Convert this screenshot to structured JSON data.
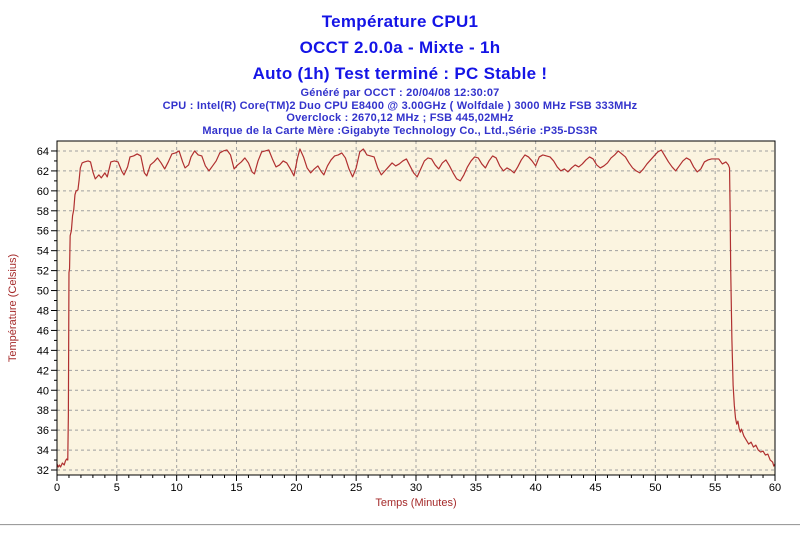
{
  "header": {
    "title_lines": [
      "Température CPU1",
      "OCCT 2.0.0a - Mixte - 1h",
      "Auto (1h) Test terminé : PC Stable !"
    ],
    "info_lines": [
      "Généré par OCCT : 20/04/08 12:30:07",
      "CPU : Intel(R) Core(TM)2 Duo CPU E8400 @ 3.00GHz ( Wolfdale ) 3000 MHz FSB 333MHz",
      "Overclock : 2670,12 MHz ; FSB 445,02MHz",
      "Marque de la Carte Mère :Gigabyte Technology Co., Ltd.,Série :P35-DS3R"
    ],
    "title_color": "#1414E6",
    "info_color": "#3333CC"
  },
  "chart_data": {
    "type": "line",
    "title": "Température CPU1",
    "xlabel": "Temps (Minutes)",
    "ylabel": "Température (Celsius)",
    "xlim": [
      0,
      60
    ],
    "ylim_display": [
      31.5,
      65.0
    ],
    "xticks": [
      0,
      5,
      10,
      15,
      20,
      25,
      30,
      35,
      40,
      45,
      50,
      55,
      60
    ],
    "yticks": [
      32,
      34,
      36,
      38,
      40,
      42,
      44,
      46,
      48,
      50,
      52,
      54,
      56,
      58,
      60,
      62,
      64
    ],
    "x_minor_step": 1,
    "y_minor_step": 1,
    "grid": "dashed",
    "grid_color": "#A0A0A0",
    "plot_bg": "#FBF4E0",
    "axis_color": "#000000",
    "tick_label_color": "#000000",
    "axis_title_color": "#A52A2A",
    "legend": "none",
    "series": [
      {
        "name": "CPU1",
        "color": "#B03030",
        "points": [
          [
            0,
            32.6
          ],
          [
            0.1,
            32.3
          ],
          [
            0.2,
            32.5
          ],
          [
            0.3,
            32.3
          ],
          [
            0.45,
            32.7
          ],
          [
            0.6,
            32.5
          ],
          [
            0.7,
            32.9
          ],
          [
            0.8,
            33.1
          ],
          [
            0.9,
            33.0
          ],
          [
            0.95,
            37.5
          ],
          [
            1.0,
            51.8
          ],
          [
            1.05,
            52.2
          ],
          [
            1.1,
            55.5
          ],
          [
            1.2,
            56.0
          ],
          [
            1.3,
            57.5
          ],
          [
            1.4,
            58.1
          ],
          [
            1.5,
            59.6
          ],
          [
            1.6,
            60.0
          ],
          [
            1.75,
            60.1
          ],
          [
            1.85,
            61.1
          ],
          [
            1.95,
            62.3
          ],
          [
            2.1,
            62.8
          ],
          [
            2.3,
            62.9
          ],
          [
            2.6,
            63.0
          ],
          [
            2.8,
            62.9
          ],
          [
            3.0,
            61.9
          ],
          [
            3.2,
            61.2
          ],
          [
            3.5,
            61.6
          ],
          [
            3.7,
            61.3
          ],
          [
            4.0,
            61.8
          ],
          [
            4.2,
            61.4
          ],
          [
            4.5,
            62.9
          ],
          [
            4.8,
            63.0
          ],
          [
            5.1,
            62.9
          ],
          [
            5.4,
            62.0
          ],
          [
            5.6,
            61.6
          ],
          [
            5.9,
            62.4
          ],
          [
            6.1,
            63.4
          ],
          [
            6.4,
            63.5
          ],
          [
            6.7,
            63.7
          ],
          [
            7.0,
            63.5
          ],
          [
            7.3,
            61.8
          ],
          [
            7.5,
            61.5
          ],
          [
            7.8,
            62.6
          ],
          [
            8.1,
            62.9
          ],
          [
            8.4,
            63.3
          ],
          [
            8.7,
            62.8
          ],
          [
            9.0,
            62.2
          ],
          [
            9.3,
            62.9
          ],
          [
            9.6,
            63.7
          ],
          [
            9.9,
            63.8
          ],
          [
            10.2,
            64.0
          ],
          [
            10.5,
            62.9
          ],
          [
            10.7,
            62.3
          ],
          [
            11.0,
            62.6
          ],
          [
            11.2,
            63.4
          ],
          [
            11.5,
            64.0
          ],
          [
            11.8,
            63.6
          ],
          [
            12.1,
            63.5
          ],
          [
            12.4,
            62.5
          ],
          [
            12.7,
            62.0
          ],
          [
            13.0,
            62.5
          ],
          [
            13.3,
            63.0
          ],
          [
            13.6,
            63.8
          ],
          [
            13.9,
            64.0
          ],
          [
            14.2,
            64.1
          ],
          [
            14.5,
            63.6
          ],
          [
            14.8,
            62.2
          ],
          [
            15.1,
            62.6
          ],
          [
            15.4,
            62.9
          ],
          [
            15.7,
            63.3
          ],
          [
            16.0,
            62.8
          ],
          [
            16.3,
            61.9
          ],
          [
            16.5,
            61.7
          ],
          [
            16.8,
            63.0
          ],
          [
            17.1,
            63.9
          ],
          [
            17.4,
            64.0
          ],
          [
            17.7,
            64.1
          ],
          [
            18.0,
            63.2
          ],
          [
            18.3,
            62.4
          ],
          [
            18.6,
            62.6
          ],
          [
            18.9,
            63.0
          ],
          [
            19.2,
            62.8
          ],
          [
            19.5,
            62.2
          ],
          [
            19.8,
            61.5
          ],
          [
            20.1,
            63.3
          ],
          [
            20.3,
            64.2
          ],
          [
            20.6,
            63.4
          ],
          [
            20.9,
            62.3
          ],
          [
            21.2,
            61.8
          ],
          [
            21.5,
            62.2
          ],
          [
            21.8,
            62.5
          ],
          [
            22.1,
            61.9
          ],
          [
            22.3,
            61.6
          ],
          [
            22.6,
            62.5
          ],
          [
            22.9,
            63.1
          ],
          [
            23.2,
            63.5
          ],
          [
            23.5,
            63.6
          ],
          [
            23.8,
            63.8
          ],
          [
            24.1,
            63.3
          ],
          [
            24.4,
            62.2
          ],
          [
            24.7,
            61.4
          ],
          [
            25.0,
            62.3
          ],
          [
            25.3,
            63.9
          ],
          [
            25.6,
            64.2
          ],
          [
            25.9,
            63.6
          ],
          [
            26.2,
            63.5
          ],
          [
            26.5,
            63.4
          ],
          [
            26.8,
            62.3
          ],
          [
            27.1,
            61.6
          ],
          [
            27.4,
            62.0
          ],
          [
            27.7,
            62.4
          ],
          [
            28.0,
            62.8
          ],
          [
            28.3,
            62.5
          ],
          [
            28.6,
            62.7
          ],
          [
            28.9,
            63.0
          ],
          [
            29.2,
            63.2
          ],
          [
            29.5,
            62.5
          ],
          [
            29.8,
            61.8
          ],
          [
            30.1,
            61.4
          ],
          [
            30.4,
            62.2
          ],
          [
            30.7,
            63.0
          ],
          [
            31.0,
            63.3
          ],
          [
            31.3,
            63.2
          ],
          [
            31.6,
            62.6
          ],
          [
            31.9,
            62.2
          ],
          [
            32.2,
            62.8
          ],
          [
            32.5,
            63.1
          ],
          [
            32.8,
            62.5
          ],
          [
            33.1,
            61.8
          ],
          [
            33.4,
            61.2
          ],
          [
            33.7,
            61.0
          ],
          [
            34.0,
            61.6
          ],
          [
            34.3,
            62.4
          ],
          [
            34.6,
            63.0
          ],
          [
            34.9,
            63.4
          ],
          [
            35.2,
            63.3
          ],
          [
            35.5,
            62.7
          ],
          [
            35.8,
            62.3
          ],
          [
            36.1,
            63.0
          ],
          [
            36.4,
            63.5
          ],
          [
            36.7,
            63.3
          ],
          [
            37.0,
            62.5
          ],
          [
            37.3,
            62.0
          ],
          [
            37.6,
            62.3
          ],
          [
            37.9,
            62.1
          ],
          [
            38.2,
            61.8
          ],
          [
            38.5,
            62.4
          ],
          [
            38.8,
            63.1
          ],
          [
            39.1,
            63.6
          ],
          [
            39.4,
            63.4
          ],
          [
            39.7,
            63.0
          ],
          [
            40.0,
            62.5
          ],
          [
            40.3,
            63.4
          ],
          [
            40.6,
            63.6
          ],
          [
            40.9,
            63.5
          ],
          [
            41.2,
            63.4
          ],
          [
            41.5,
            63.0
          ],
          [
            41.8,
            62.4
          ],
          [
            42.1,
            62.0
          ],
          [
            42.4,
            62.2
          ],
          [
            42.7,
            61.9
          ],
          [
            43.0,
            62.3
          ],
          [
            43.3,
            62.6
          ],
          [
            43.6,
            62.4
          ],
          [
            43.9,
            62.7
          ],
          [
            44.2,
            63.1
          ],
          [
            44.5,
            63.4
          ],
          [
            44.8,
            63.2
          ],
          [
            45.1,
            62.6
          ],
          [
            45.4,
            62.3
          ],
          [
            45.7,
            62.5
          ],
          [
            46.0,
            62.8
          ],
          [
            46.3,
            63.3
          ],
          [
            46.6,
            63.6
          ],
          [
            46.9,
            64.0
          ],
          [
            47.2,
            63.7
          ],
          [
            47.5,
            63.4
          ],
          [
            47.8,
            62.8
          ],
          [
            48.1,
            62.3
          ],
          [
            48.4,
            62.0
          ],
          [
            48.7,
            61.8
          ],
          [
            49.0,
            62.2
          ],
          [
            49.3,
            62.7
          ],
          [
            49.6,
            63.1
          ],
          [
            49.9,
            63.5
          ],
          [
            50.2,
            63.9
          ],
          [
            50.5,
            64.1
          ],
          [
            50.8,
            63.5
          ],
          [
            51.1,
            62.9
          ],
          [
            51.4,
            62.4
          ],
          [
            51.7,
            62.0
          ],
          [
            52.0,
            62.5
          ],
          [
            52.3,
            63.0
          ],
          [
            52.6,
            63.3
          ],
          [
            52.9,
            63.1
          ],
          [
            53.2,
            62.4
          ],
          [
            53.5,
            61.9
          ],
          [
            53.8,
            62.2
          ],
          [
            54.1,
            62.9
          ],
          [
            54.4,
            63.1
          ],
          [
            54.7,
            63.2
          ],
          [
            55.0,
            63.2
          ],
          [
            55.3,
            63.2
          ],
          [
            55.6,
            62.7
          ],
          [
            55.9,
            62.9
          ],
          [
            56.1,
            62.6
          ],
          [
            56.2,
            62.3
          ],
          [
            56.25,
            58.0
          ],
          [
            56.3,
            52.0
          ],
          [
            56.4,
            45.0
          ],
          [
            56.5,
            40.5
          ],
          [
            56.6,
            38.5
          ],
          [
            56.7,
            37.2
          ],
          [
            56.8,
            36.6
          ],
          [
            56.9,
            36.9
          ],
          [
            57.0,
            36.2
          ],
          [
            57.1,
            35.8
          ],
          [
            57.2,
            36.1
          ],
          [
            57.4,
            35.4
          ],
          [
            57.6,
            35.0
          ],
          [
            57.8,
            34.6
          ],
          [
            58.0,
            34.8
          ],
          [
            58.2,
            34.3
          ],
          [
            58.4,
            34.5
          ],
          [
            58.6,
            34.0
          ],
          [
            58.8,
            33.8
          ],
          [
            59.0,
            33.9
          ],
          [
            59.2,
            33.5
          ],
          [
            59.4,
            33.6
          ],
          [
            59.6,
            33.0
          ],
          [
            59.8,
            32.8
          ],
          [
            59.9,
            32.4
          ],
          [
            60.0,
            32.6
          ]
        ]
      }
    ]
  }
}
